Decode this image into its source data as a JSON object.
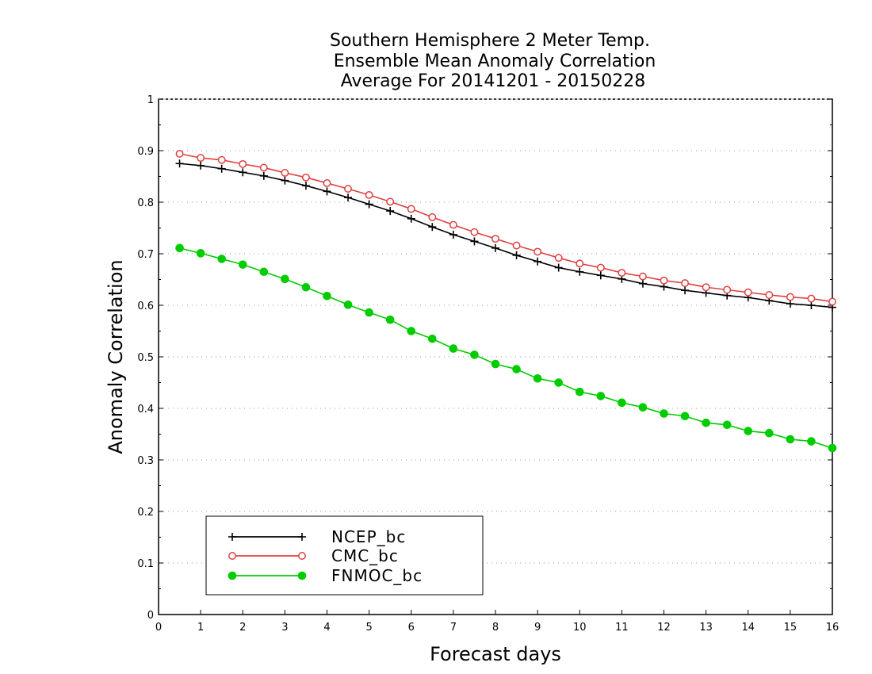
{
  "chart_data": {
    "type": "line",
    "title_lines": [
      "Southern Hemisphere 2 Meter Temp.",
      "Ensemble Mean Anomaly Correlation",
      "Average For 20141201 - 20150228"
    ],
    "xlabel": "Forecast days",
    "ylabel": "Anomaly Correlation",
    "xlim": [
      0,
      16
    ],
    "ylim": [
      0,
      1
    ],
    "x_ticks": [
      0,
      1,
      2,
      3,
      4,
      5,
      6,
      7,
      8,
      9,
      10,
      11,
      12,
      13,
      14,
      15,
      16
    ],
    "y_ticks": [
      0,
      0.1,
      0.2,
      0.3,
      0.4,
      0.5,
      0.6,
      0.7,
      0.8,
      0.9,
      1
    ],
    "y_tick_labels": [
      "0",
      "0.1",
      "0.2",
      "0.3",
      "0.4",
      "0.5",
      "0.6",
      "0.7",
      "0.8",
      "0.9",
      "1"
    ],
    "grid": "horizontal dotted",
    "legend_position": "bottom-left",
    "x": [
      0.5,
      1,
      1.5,
      2,
      2.5,
      3,
      3.5,
      4,
      4.5,
      5,
      5.5,
      6,
      6.5,
      7,
      7.5,
      8,
      8.5,
      9,
      9.5,
      10,
      10.5,
      11,
      11.5,
      12,
      12.5,
      13,
      13.5,
      14,
      14.5,
      15,
      15.5,
      16
    ],
    "series": [
      {
        "name": "NCEP_bc",
        "color": "#000000",
        "marker": "plus",
        "values": [
          0.875,
          0.871,
          0.865,
          0.858,
          0.851,
          0.842,
          0.832,
          0.821,
          0.809,
          0.796,
          0.783,
          0.768,
          0.752,
          0.737,
          0.724,
          0.711,
          0.697,
          0.685,
          0.673,
          0.665,
          0.658,
          0.651,
          0.642,
          0.636,
          0.629,
          0.624,
          0.619,
          0.615,
          0.609,
          0.603,
          0.6,
          0.596
        ]
      },
      {
        "name": "CMC_bc",
        "color": "#e04040",
        "marker": "open-circle",
        "values": [
          0.894,
          0.886,
          0.882,
          0.874,
          0.867,
          0.857,
          0.848,
          0.837,
          0.826,
          0.814,
          0.801,
          0.787,
          0.771,
          0.756,
          0.742,
          0.729,
          0.716,
          0.704,
          0.692,
          0.681,
          0.673,
          0.663,
          0.656,
          0.648,
          0.643,
          0.635,
          0.63,
          0.625,
          0.62,
          0.616,
          0.613,
          0.607
        ]
      },
      {
        "name": "FNMOC_bc",
        "color": "#00cc00",
        "marker": "filled-circle",
        "values": [
          0.711,
          0.701,
          0.69,
          0.679,
          0.665,
          0.651,
          0.635,
          0.618,
          0.601,
          0.586,
          0.572,
          0.55,
          0.535,
          0.516,
          0.504,
          0.486,
          0.476,
          0.458,
          0.45,
          0.432,
          0.424,
          0.411,
          0.402,
          0.39,
          0.385,
          0.372,
          0.368,
          0.356,
          0.352,
          0.34,
          0.336,
          0.323
        ]
      }
    ]
  }
}
